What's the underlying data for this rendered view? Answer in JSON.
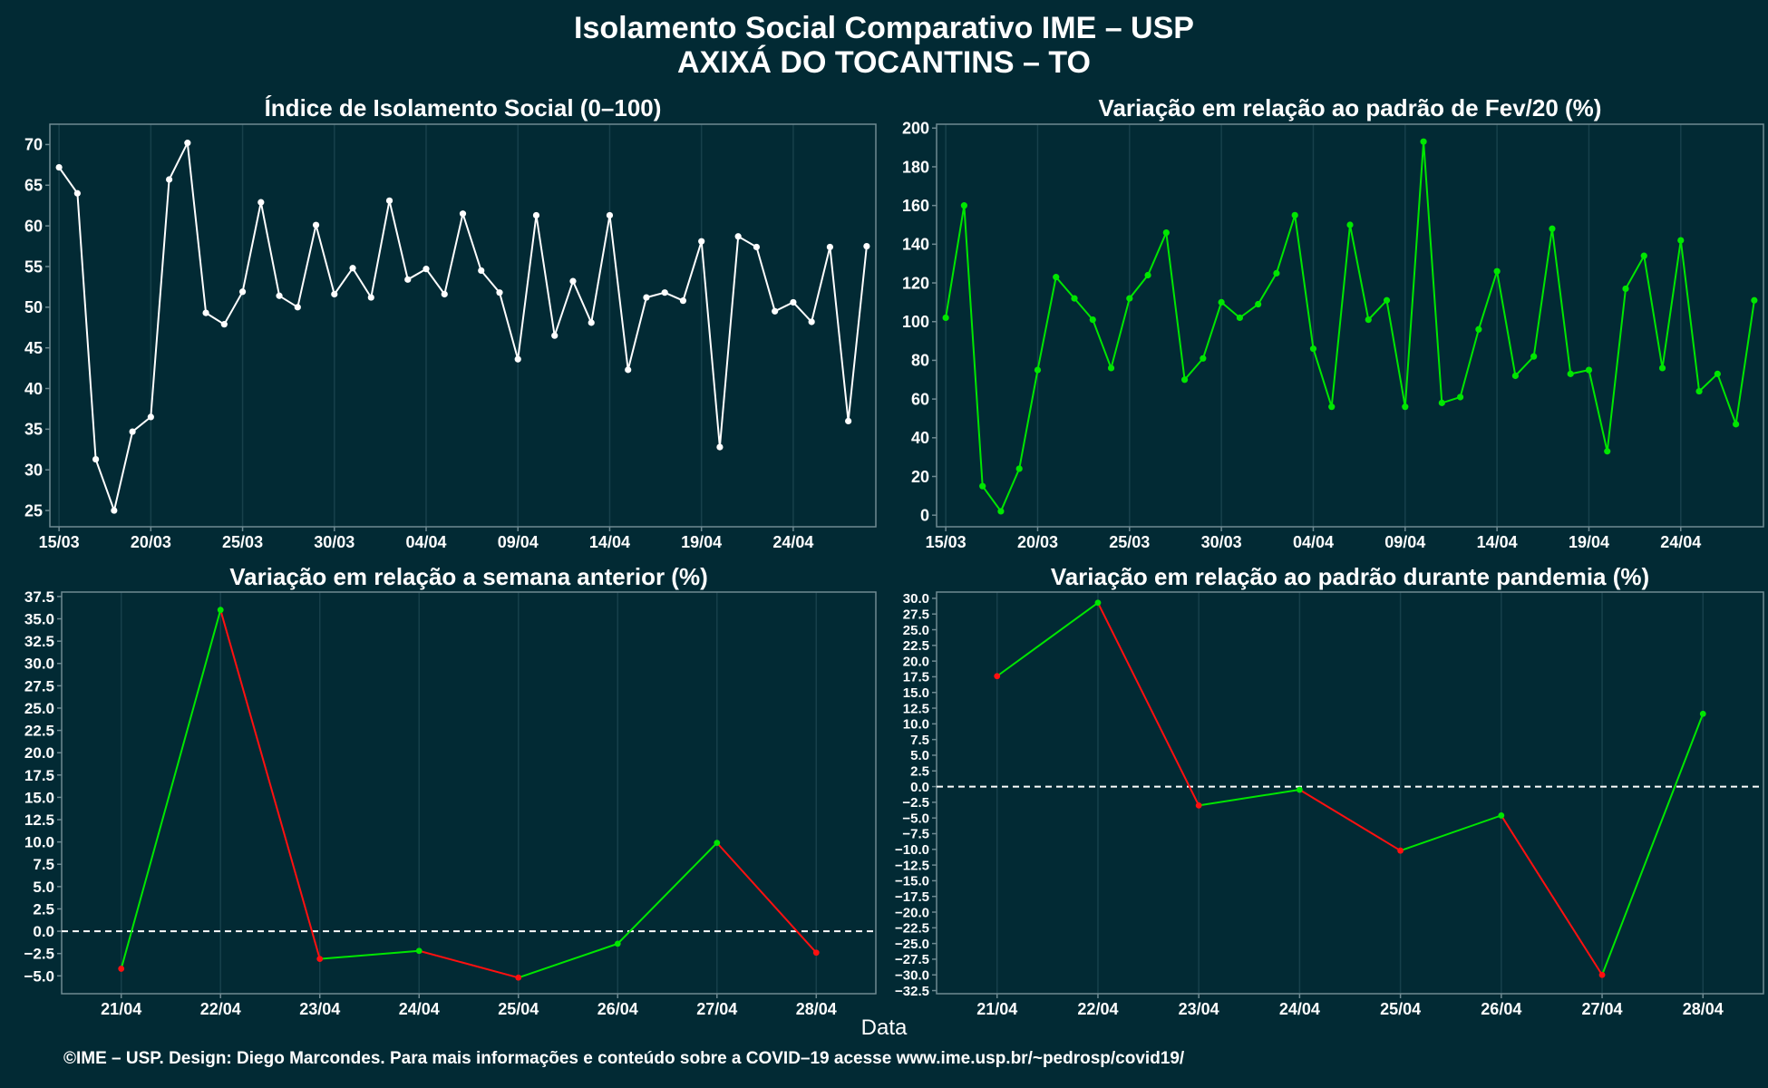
{
  "title": "Isolamento Social Comparativo IME – USP",
  "subtitle": "AXIXÁ DO TOCANTINS – TO",
  "footer": "©IME – USP. Design: Diego Marcondes. Para mais informações e conteúdo sobre a COVID–19 acesse www.ime.usp.br/~pedrosp/covid19/",
  "xlabel": "Data",
  "colors": {
    "background": "#022a34",
    "panel_border": "#6f8a92",
    "grid": "#17404b",
    "white_line": "#ffffff",
    "green": "#00e600",
    "red": "#ff1010"
  },
  "chart_data": [
    {
      "type": "line",
      "title": "Índice de Isolamento Social (0–100)",
      "x": [
        "15/03",
        "16/03",
        "17/03",
        "18/03",
        "19/03",
        "20/03",
        "21/03",
        "22/03",
        "23/03",
        "24/03",
        "25/03",
        "26/03",
        "27/03",
        "28/03",
        "29/03",
        "30/03",
        "31/03",
        "01/04",
        "02/04",
        "03/04",
        "04/04",
        "05/04",
        "06/04",
        "07/04",
        "08/04",
        "09/04",
        "10/04",
        "11/04",
        "12/04",
        "13/04",
        "14/04",
        "15/04",
        "16/04",
        "17/04",
        "18/04",
        "19/04",
        "20/04",
        "21/04",
        "22/04",
        "23/04",
        "24/04",
        "25/04",
        "26/04",
        "27/04",
        "28/04"
      ],
      "xticks": [
        "15/03",
        "20/03",
        "25/03",
        "30/03",
        "04/04",
        "09/04",
        "14/04",
        "19/04",
        "24/04"
      ],
      "values": [
        67.2,
        64.0,
        31.3,
        25.0,
        34.7,
        36.5,
        65.7,
        70.2,
        49.3,
        47.9,
        51.9,
        62.9,
        51.4,
        50.0,
        60.1,
        51.6,
        54.8,
        51.2,
        63.1,
        53.4,
        54.7,
        51.6,
        61.5,
        54.5,
        51.8,
        43.6,
        61.3,
        46.5,
        53.2,
        48.1,
        61.3,
        42.3,
        51.2,
        51.8,
        50.8,
        58.1,
        32.8,
        58.7,
        57.4,
        49.5,
        50.6,
        48.2,
        57.4,
        36.0,
        57.5
      ],
      "yticks": [
        25,
        30,
        35,
        40,
        45,
        50,
        55,
        60,
        65,
        70
      ],
      "ylim": [
        23,
        72.5
      ],
      "color": "#ffffff"
    },
    {
      "type": "line",
      "title": "Variação em relação ao padrão de Fev/20 (%)",
      "x": [
        "15/03",
        "16/03",
        "17/03",
        "18/03",
        "19/03",
        "20/03",
        "21/03",
        "22/03",
        "23/03",
        "24/03",
        "25/03",
        "26/03",
        "27/03",
        "28/03",
        "29/03",
        "30/03",
        "31/03",
        "01/04",
        "02/04",
        "03/04",
        "04/04",
        "05/04",
        "06/04",
        "07/04",
        "08/04",
        "09/04",
        "10/04",
        "11/04",
        "12/04",
        "13/04",
        "14/04",
        "15/04",
        "16/04",
        "17/04",
        "18/04",
        "19/04",
        "20/04",
        "21/04",
        "22/04",
        "23/04",
        "24/04",
        "25/04",
        "26/04",
        "27/04",
        "28/04"
      ],
      "xticks": [
        "15/03",
        "20/03",
        "25/03",
        "30/03",
        "04/04",
        "09/04",
        "14/04",
        "19/04",
        "24/04"
      ],
      "values": [
        102,
        160,
        15,
        2,
        24,
        75,
        123,
        112,
        101,
        76,
        112,
        124,
        146,
        70,
        81,
        110,
        102,
        109,
        125,
        155,
        86,
        56,
        150,
        101,
        111,
        56,
        193,
        58,
        61,
        96,
        126,
        72,
        82,
        148,
        73,
        75,
        33,
        117,
        134,
        76,
        142,
        64,
        73,
        47,
        111
      ],
      "yticks": [
        0,
        20,
        40,
        60,
        80,
        100,
        120,
        140,
        160,
        180,
        200
      ],
      "ylim": [
        -6,
        202
      ],
      "color": "#00e600"
    },
    {
      "type": "line",
      "title": "Variação em relação a semana anterior (%)",
      "x": [
        "21/04",
        "22/04",
        "23/04",
        "24/04",
        "25/04",
        "26/04",
        "27/04",
        "28/04"
      ],
      "values": [
        -4.2,
        36.0,
        -3.1,
        -2.2,
        -5.2,
        -1.4,
        9.9,
        -2.4
      ],
      "yticks": [
        -5,
        -2.5,
        0,
        2.5,
        5,
        7.5,
        10,
        12.5,
        15,
        17.5,
        20,
        22.5,
        25,
        27.5,
        30,
        32.5,
        35,
        37.5
      ],
      "ylim": [
        -7,
        38
      ],
      "reference_line": 0
    },
    {
      "type": "line",
      "title": "Variação em relação ao padrão durante pandemia (%)",
      "x": [
        "21/04",
        "22/04",
        "23/04",
        "24/04",
        "25/04",
        "26/04",
        "27/04",
        "28/04"
      ],
      "values": [
        17.6,
        29.3,
        -3.0,
        -0.5,
        -10.2,
        -4.6,
        -30.0,
        11.6
      ],
      "yticks": [
        -32.5,
        -30,
        -27.5,
        -25,
        -22.5,
        -20,
        -17.5,
        -15,
        -12.5,
        -10,
        -7.5,
        -5,
        -2.5,
        0,
        2.5,
        5,
        7.5,
        10,
        12.5,
        15,
        17.5,
        20,
        22.5,
        25,
        27.5,
        30
      ],
      "ylim": [
        -33,
        31
      ],
      "reference_line": 0
    }
  ]
}
